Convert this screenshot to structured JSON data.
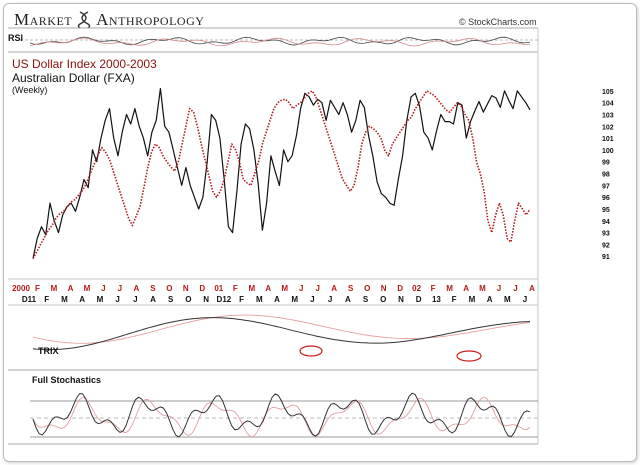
{
  "brand": {
    "left": "Market",
    "right": "Anthropology"
  },
  "credit": "© StockCharts.com",
  "chart_data": [
    {
      "type": "line",
      "title": "US Dollar Index 2000-2003",
      "subtitle": "Australian Dollar (FXA)",
      "note": "(Weekly)",
      "ylim": [
        90,
        105.5
      ],
      "yticks": [
        91,
        92,
        93,
        94,
        95,
        96,
        97,
        98,
        99,
        100,
        101,
        102,
        103,
        104,
        105
      ],
      "xlabels_top": [
        "2000",
        "F",
        "M",
        "A",
        "M",
        "J",
        "J",
        "A",
        "S",
        "O",
        "N",
        "D",
        "01",
        "F",
        "M",
        "A",
        "M",
        "J",
        "J",
        "A",
        "S",
        "O",
        "N",
        "D",
        "02",
        "F",
        "M",
        "A",
        "M",
        "J",
        "J",
        "A"
      ],
      "xlabels_bottom": [
        "D11",
        "F",
        "M",
        "A",
        "M",
        "J",
        "J",
        "A",
        "S",
        "O",
        "N",
        "D12",
        "F",
        "M",
        "A",
        "M",
        "J",
        "J",
        "A",
        "S",
        "O",
        "N",
        "D",
        "13",
        "F",
        "M",
        "A",
        "M",
        "J"
      ],
      "series": [
        {
          "color": "#111111",
          "style": "solid",
          "values": [
            90.8,
            92.5,
            93.5,
            92.8,
            95.5,
            94,
            93,
            94.5,
            95.2,
            95.5,
            94.8,
            96,
            97.5,
            96.8,
            100,
            99,
            101,
            102.5,
            103.5,
            101,
            99.5,
            101.5,
            103,
            102.2,
            103.5,
            102,
            101,
            99.5,
            101.5,
            102.5,
            105.2,
            102,
            101.5,
            100,
            98.5,
            97,
            98.5,
            97,
            96,
            95,
            96,
            99,
            103,
            102.5,
            101,
            97.5,
            93.5,
            93,
            96.5,
            100.5,
            102.2,
            101.8,
            100,
            97.2,
            93.2,
            95.5,
            99.5,
            98.2,
            97,
            100,
            99,
            99.5,
            101.2,
            103.5,
            104.8,
            104.5,
            103.8,
            104.3,
            104,
            102.5,
            104.2,
            103.6,
            103,
            104,
            103,
            101.5,
            102.5,
            104.2,
            103.6,
            101.2,
            99.5,
            97.3,
            96.3,
            96,
            95.5,
            95.3,
            97.5,
            99.5,
            102.5,
            104.5,
            104.8,
            103.7,
            101.5,
            101,
            100,
            101.6,
            103,
            102.4,
            102.4,
            102.2,
            104,
            103.8,
            101,
            102.4,
            103.3,
            104.1,
            103.2,
            103.9,
            104.6,
            104.4,
            103.6,
            105,
            104.2,
            103.5,
            105,
            104.5,
            104,
            103.4
          ]
        },
        {
          "color": "#b21a1a",
          "style": "dotted",
          "values": [
            90.8,
            91.4,
            92,
            92.6,
            93.2,
            93.6,
            94.2,
            94.6,
            94.8,
            95.2,
            95.6,
            95.8,
            96.2,
            96.6,
            97.2,
            98,
            98.8,
            99.6,
            100.2,
            99.8,
            99.2,
            98.2,
            97.2,
            96.2,
            95.2,
            94.2,
            93.6,
            94.4,
            95.2,
            96.8,
            98.5,
            99.8,
            100.5,
            100.2,
            99.5,
            99,
            98.6,
            98.2,
            99,
            100.5,
            102,
            103.5,
            103.2,
            102,
            100.5,
            99.2,
            97.8,
            96.5,
            96,
            96.5,
            97.5,
            99,
            100.5,
            100,
            99,
            97.5,
            97.2,
            97,
            98,
            99,
            100.5,
            101.5,
            102.5,
            103.5,
            104,
            104.2,
            104.3,
            104,
            103.5,
            103.8,
            104,
            104.4,
            104.8,
            105,
            104.5,
            103.5,
            102.5,
            101.5,
            100.5,
            99.5,
            98.5,
            97.5,
            97,
            96.5,
            97,
            98.5,
            100.5,
            101.5,
            102,
            101.8,
            101.5,
            101,
            100,
            99.5,
            100.5,
            101,
            101.5,
            102,
            102.5,
            102.8,
            103.5,
            104,
            104.5,
            105,
            104.8,
            104.6,
            104.2,
            103.8,
            103.4,
            103.2,
            103.6,
            104,
            103.7,
            103,
            102.5,
            101,
            99,
            98,
            96.5,
            94,
            93,
            94.5,
            95.5,
            94.5,
            92.5,
            92.2,
            94,
            95.5,
            95,
            94.5,
            95
          ]
        }
      ]
    },
    {
      "type": "line",
      "title": "RSI"
    },
    {
      "type": "line",
      "title": "TRIX"
    },
    {
      "type": "line",
      "title": "Full Stochastics"
    }
  ]
}
